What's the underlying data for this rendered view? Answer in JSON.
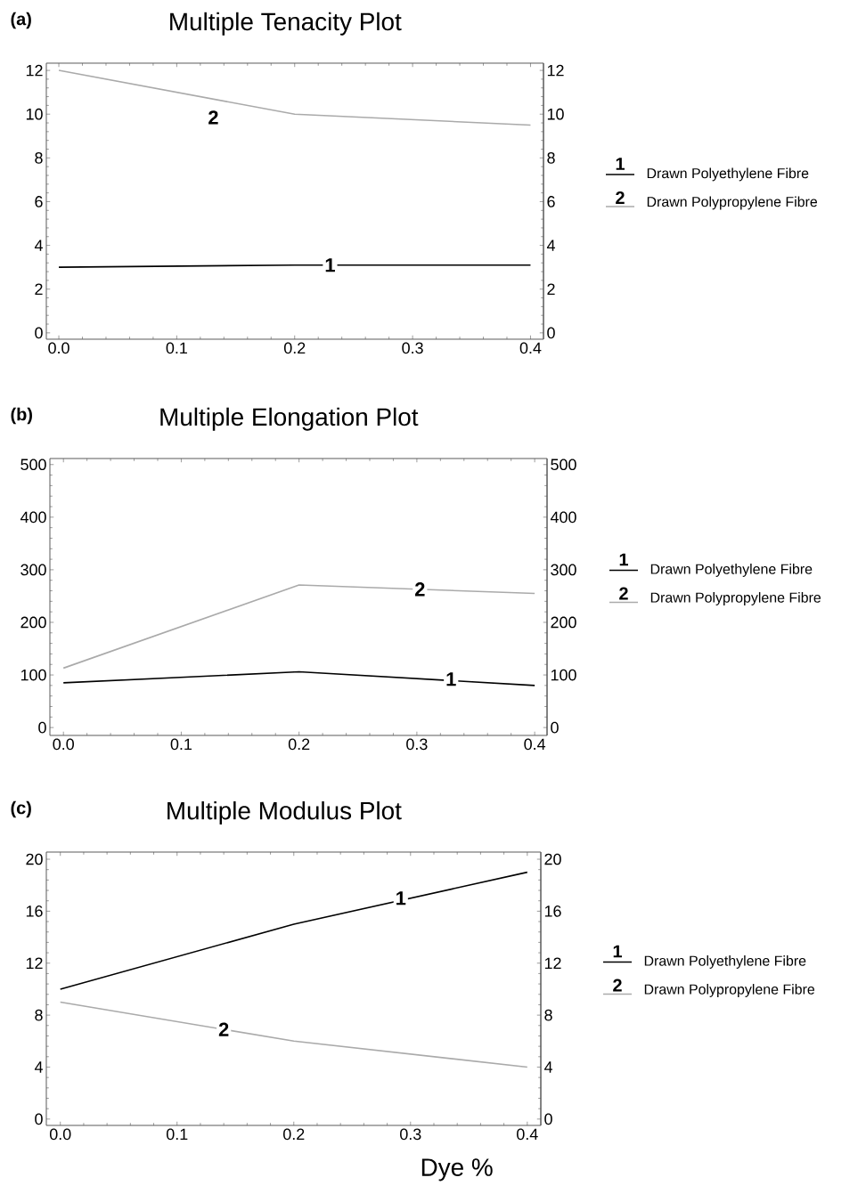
{
  "chart_data": [
    {
      "type": "line",
      "title": "Multiple Tenacity Plot",
      "legend": "right",
      "x": [
        0,
        0.2,
        0.4
      ],
      "series": [
        {
          "name": "Drawn Polyethylene Fibre",
          "color": "#000000",
          "values": [
            3,
            3.1,
            3.1
          ]
        },
        {
          "name": "Drawn Polypropylene Fibre",
          "color": "#aaaaaa",
          "values": [
            12,
            10,
            9.5
          ]
        }
      ],
      "annotations": [
        {
          "text": "1",
          "x": 0.23,
          "y": 3.1
        },
        {
          "text": "2",
          "x": 0.131,
          "y": 9.85
        },
        "(a)"
      ],
      "xlim": [
        -0.0106,
        0.411
      ],
      "xticks": [
        {
          "value": 0,
          "label": "0.0"
        },
        {
          "value": 0.1,
          "label": "0.1"
        },
        {
          "value": 0.2,
          "label": "0.2"
        },
        {
          "value": 0.3,
          "label": "0.3"
        },
        {
          "value": 0.4,
          "label": "0.4"
        }
      ],
      "ylim": [
        -0.29,
        12.33
      ],
      "yticks": [
        0,
        2,
        4,
        6,
        8,
        10,
        12
      ],
      "y2lim": [
        -0.29,
        12.33
      ],
      "y2ticks": [
        0,
        2,
        4,
        6,
        8,
        10,
        12
      ]
    },
    {
      "type": "line",
      "title": "Multiple Elongation Plot",
      "legend": "right",
      "x": [
        0,
        0.2,
        0.4
      ],
      "series": [
        {
          "name": "Drawn Polyethylene Fibre",
          "color": "#000000",
          "values": [
            85,
            106,
            80
          ]
        },
        {
          "name": "Drawn Polypropylene Fibre",
          "color": "#aaaaaa",
          "values": [
            113,
            271,
            255
          ]
        }
      ],
      "annotations": [
        {
          "text": "1",
          "x": 0.329,
          "y": 92
        },
        {
          "text": "2",
          "x": 0.3026,
          "y": 263
        },
        "(b)"
      ],
      "xlim": [
        -0.0115,
        0.4105
      ],
      "xticks": [
        {
          "value": 0,
          "label": "0.0"
        },
        {
          "value": 0.1,
          "label": "0.1"
        },
        {
          "value": 0.2,
          "label": "0.2"
        },
        {
          "value": 0.3,
          "label": "0.3"
        },
        {
          "value": 0.4,
          "label": "0.4"
        }
      ],
      "ylim": [
        -15,
        511.5
      ],
      "yticks": [
        0,
        100,
        200,
        300,
        400,
        500
      ],
      "y2lim": [
        -15,
        511.5
      ],
      "y2ticks": [
        0,
        100,
        200,
        300,
        400,
        500
      ]
    },
    {
      "type": "line",
      "title": "Multiple Modulus Plot",
      "xlabel": "Dye %",
      "legend": "right",
      "x": [
        0,
        0.2,
        0.4
      ],
      "series": [
        {
          "name": "Drawn Polyethylene Fibre",
          "color": "#000000",
          "values": [
            10,
            15,
            19
          ]
        },
        {
          "name": "Drawn Polypropylene Fibre",
          "color": "#aaaaaa",
          "values": [
            9,
            6,
            4
          ]
        }
      ],
      "annotations": [
        {
          "text": "1",
          "x": 0.2916,
          "y": 17.0
        },
        {
          "text": "2",
          "x": 0.14,
          "y": 6.9
        },
        "(c)"
      ],
      "xlim": [
        -0.012,
        0.4116
      ],
      "xticks": [
        {
          "value": 0,
          "label": "0.0"
        },
        {
          "value": 0.1,
          "label": "0.1"
        },
        {
          "value": 0.2,
          "label": "0.2"
        },
        {
          "value": 0.3,
          "label": "0.3"
        },
        {
          "value": 0.4,
          "label": "0.4"
        }
      ],
      "ylim": [
        -0.49,
        20.55
      ],
      "yticks": [
        0,
        4,
        8,
        12,
        16,
        20
      ],
      "y2lim": [
        -0.49,
        20.55
      ],
      "y2ticks": [
        0,
        4,
        8,
        12,
        16,
        20
      ]
    }
  ]
}
